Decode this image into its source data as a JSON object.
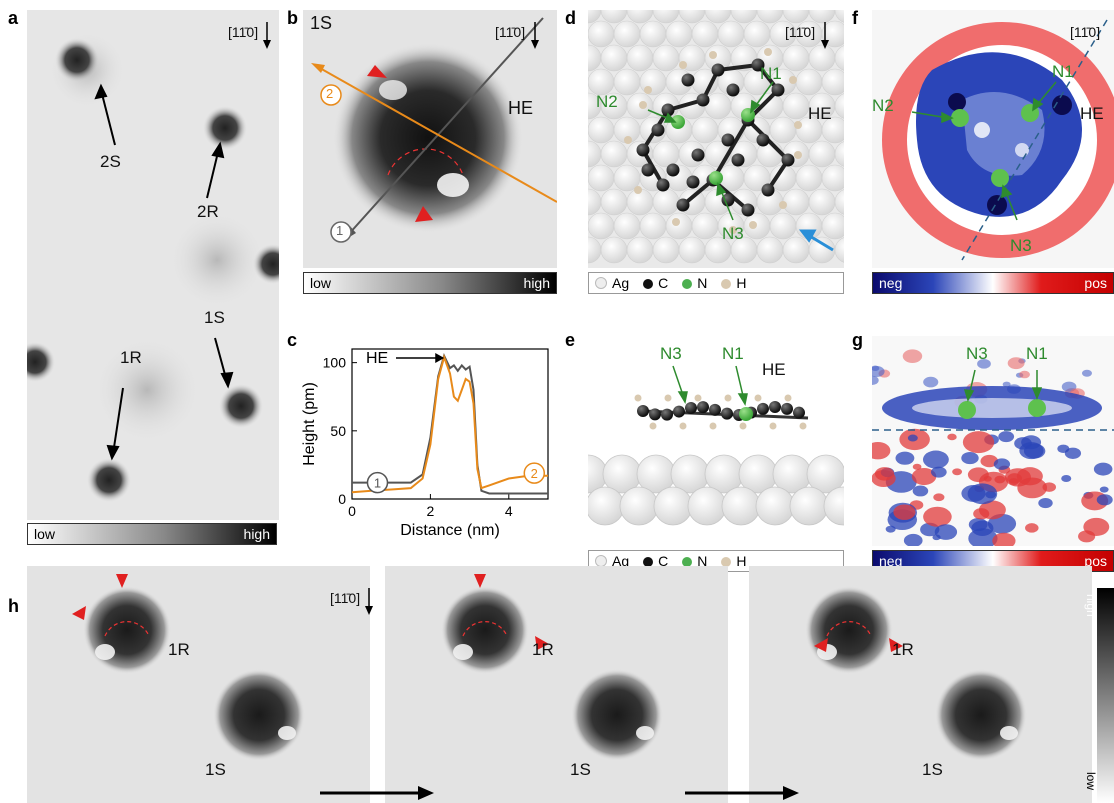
{
  "panel_letters": {
    "a": "a",
    "b": "b",
    "c": "c",
    "d": "d",
    "e": "e",
    "f": "f",
    "g": "g",
    "h": "h"
  },
  "direction_label": "[11̄0]",
  "colorbar": {
    "low": "low",
    "high": "high",
    "neg": "neg",
    "pos": "pos",
    "h_high": "high",
    "h_low": "low"
  },
  "panel_a": {
    "labels": [
      "2S",
      "2R",
      "1S",
      "1R"
    ]
  },
  "panel_b": {
    "title": "1S",
    "he": "HE",
    "line1": "1",
    "line2": "2"
  },
  "panel_c": {
    "ylabel": "Height (pm)",
    "xlabel": "Distance (nm)",
    "he": "HE",
    "xticks": [
      "0",
      "2",
      "4"
    ],
    "yticks": [
      "0",
      "50",
      "100"
    ],
    "marker1": "1",
    "marker2": "2",
    "colors": {
      "series1": "#555555",
      "series2": "#e88a1a"
    }
  },
  "chart_data": {
    "type": "line",
    "title": "",
    "xlabel": "Distance (nm)",
    "ylabel": "Height (pm)",
    "xlim": [
      0,
      5
    ],
    "ylim": [
      0,
      110
    ],
    "series": [
      {
        "name": "1",
        "x": [
          0,
          0.5,
          1.0,
          1.5,
          1.8,
          2.0,
          2.2,
          2.35,
          2.5,
          2.6,
          2.7,
          2.8,
          2.9,
          3.0,
          3.1,
          3.2,
          3.3,
          3.5,
          4.0,
          4.5,
          5.0
        ],
        "values": [
          12,
          12,
          12,
          12,
          18,
          45,
          90,
          105,
          96,
          98,
          94,
          98,
          95,
          97,
          80,
          25,
          6,
          4,
          4,
          4,
          4
        ]
      },
      {
        "name": "2",
        "x": [
          0,
          0.5,
          1.0,
          1.5,
          1.8,
          2.0,
          2.2,
          2.35,
          2.5,
          2.6,
          2.7,
          2.8,
          2.9,
          3.0,
          3.1,
          3.2,
          3.3,
          3.5,
          4.0,
          4.5,
          5.0
        ],
        "values": [
          5,
          6,
          7,
          8,
          15,
          40,
          88,
          104,
          92,
          75,
          72,
          80,
          88,
          86,
          70,
          22,
          8,
          10,
          15,
          17,
          17
        ]
      }
    ]
  },
  "panel_d": {
    "n1": "N1",
    "n2": "N2",
    "n3": "N3",
    "he": "HE"
  },
  "panel_e": {
    "n1": "N1",
    "n3": "N3",
    "he": "HE"
  },
  "panel_f": {
    "n1": "N1",
    "n2": "N2",
    "n3": "N3",
    "he": "HE"
  },
  "panel_g": {
    "n1": "N1",
    "n3": "N3"
  },
  "legend": {
    "ag": "Ag",
    "c": "C",
    "n": "N",
    "h": "H"
  },
  "panel_h": {
    "r": "1R",
    "s": "1S"
  }
}
